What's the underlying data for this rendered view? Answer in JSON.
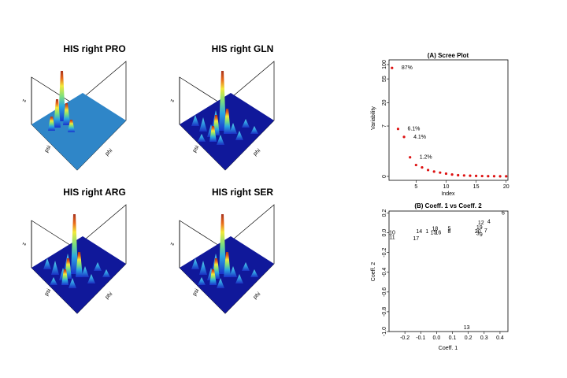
{
  "surface_panels": [
    {
      "title": "HIS right PRO",
      "axis_z": "z",
      "axis_psi": "psi",
      "axis_phi": "phi",
      "style": "flat"
    },
    {
      "title": "HIS right GLN",
      "axis_z": "z",
      "axis_psi": "psi",
      "axis_phi": "phi",
      "style": "dense"
    },
    {
      "title": "HIS right ARG",
      "axis_z": "z",
      "axis_psi": "psi",
      "axis_phi": "phi",
      "style": "dense"
    },
    {
      "title": "HIS right SER",
      "axis_z": "z",
      "axis_psi": "psi",
      "axis_phi": "phi",
      "style": "dense"
    }
  ],
  "colors": {
    "point": "#dd1111",
    "flat_surface": "#2f86c8",
    "dark_blue": "#10189a",
    "peak_high": "#a8321c"
  },
  "chart_data": [
    {
      "type": "scatter",
      "title": "(A) Scree Plot",
      "xlabel": "Index",
      "ylabel": "Variability",
      "y_ticks": [
        "100",
        "55",
        "20",
        "7",
        "0"
      ],
      "x_ticks": [
        "5",
        "10",
        "15",
        "20"
      ],
      "xlim": [
        0.5,
        20.3
      ],
      "grid": false,
      "series": [
        {
          "x": [
            1,
            2,
            3,
            4,
            5,
            6,
            7,
            8,
            9,
            10,
            11,
            12,
            13,
            14,
            15,
            16,
            17,
            18,
            19,
            20
          ],
          "y": [
            87,
            6.1,
            4.1,
            1.2,
            0.6,
            0.45,
            0.3,
            0.22,
            0.17,
            0.12,
            0.08,
            0.05,
            0.04,
            0.03,
            0.02,
            0.015,
            0.01,
            0.008,
            0.005,
            0.003
          ]
        }
      ],
      "annotations": [
        {
          "text": "87%",
          "x": 1
        },
        {
          "text": "6.1%",
          "x": 2
        },
        {
          "text": "4.1%",
          "x": 3
        },
        {
          "text": "1.2%",
          "x": 4
        }
      ]
    },
    {
      "type": "scatter",
      "title": "(B) Coeff. 1 vs Coeff. 2",
      "xlabel": "Coeff. 1",
      "ylabel": "Coeff. 2",
      "xlim": [
        -0.3,
        0.45
      ],
      "ylim": [
        -1.0,
        0.22
      ],
      "x_ticks": [
        "-0.2",
        "-0.1",
        "0.0",
        "0.1",
        "0.2",
        "0.3",
        "0.4"
      ],
      "y_ticks": [
        "0.2",
        "0.0",
        "-0.2",
        "-0.4",
        "-0.6",
        "-0.8",
        "-1.0"
      ],
      "grid": false,
      "points": [
        {
          "label": "6",
          "x": 0.42,
          "y": 0.2
        },
        {
          "label": "4",
          "x": 0.33,
          "y": 0.11
        },
        {
          "label": "12",
          "x": 0.28,
          "y": 0.1
        },
        {
          "label": "19",
          "x": 0.27,
          "y": 0.05
        },
        {
          "label": "7",
          "x": 0.31,
          "y": 0.02
        },
        {
          "label": "20",
          "x": 0.26,
          "y": 0.01
        },
        {
          "label": "3",
          "x": 0.26,
          "y": -0.01
        },
        {
          "label": "9",
          "x": 0.28,
          "y": -0.02
        },
        {
          "label": "10",
          "x": -0.28,
          "y": 0.0
        },
        {
          "label": "11",
          "x": -0.28,
          "y": -0.05
        },
        {
          "label": "14",
          "x": -0.11,
          "y": 0.01
        },
        {
          "label": "1",
          "x": -0.06,
          "y": 0.01
        },
        {
          "label": "17",
          "x": -0.13,
          "y": -0.06
        },
        {
          "label": "18",
          "x": -0.01,
          "y": 0.04
        },
        {
          "label": "15",
          "x": -0.02,
          "y": 0.0
        },
        {
          "label": "16",
          "x": 0.01,
          "y": 0.0
        },
        {
          "label": "5",
          "x": 0.08,
          "y": 0.04
        },
        {
          "label": "8",
          "x": 0.08,
          "y": 0.01
        },
        {
          "label": "13",
          "x": 0.19,
          "y": -0.96
        }
      ]
    }
  ]
}
